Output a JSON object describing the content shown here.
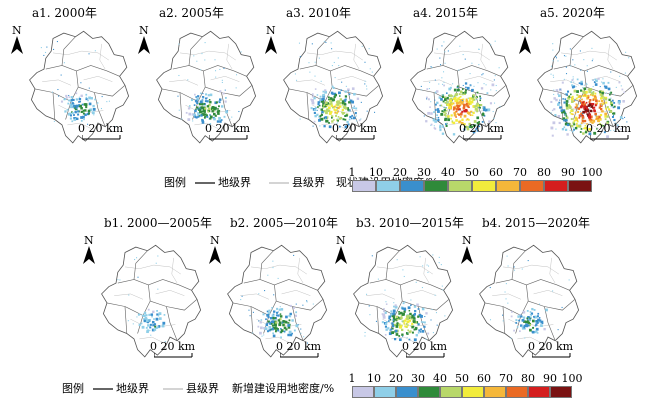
{
  "top_panels": [
    {
      "title": "a1. 2000年",
      "level": 1
    },
    {
      "title": "a2. 2005年",
      "level": 1.3
    },
    {
      "title": "a3. 2010年",
      "level": 2
    },
    {
      "title": "a4. 2015年",
      "level": 3
    },
    {
      "title": "a5. 2020年",
      "level": 3.5
    }
  ],
  "bottom_panels": [
    {
      "title": "b1. 2000—2005年",
      "level": 0.6
    },
    {
      "title": "b2. 2005—2010年",
      "level": 1.2
    },
    {
      "title": "b3. 2010—2015年",
      "level": 1.8
    },
    {
      "title": "b4. 2015—2020年",
      "level": 0.9
    }
  ],
  "north_label": "N",
  "scale_label": "20 km",
  "scale_zero": "0",
  "legend_top": {
    "title": "图例",
    "city_boundary": "地级界",
    "county_boundary": "县级界",
    "density_label": "现状建设用地密度/%"
  },
  "legend_bottom": {
    "title": "图例",
    "city_boundary": "地级界",
    "county_boundary": "县级界",
    "density_label": "新增建设用地密度/%"
  },
  "density_ticks": [
    "1",
    "10",
    "20",
    "30",
    "40",
    "50",
    "60",
    "70",
    "80",
    "90",
    "100"
  ],
  "density_colors": [
    "#c8c8e6",
    "#8fcfe8",
    "#3a8fcd",
    "#2f8a3a",
    "#b8d86a",
    "#f2ec3c",
    "#f5b73a",
    "#ea6a24",
    "#d41e1e",
    "#7a1212"
  ]
}
